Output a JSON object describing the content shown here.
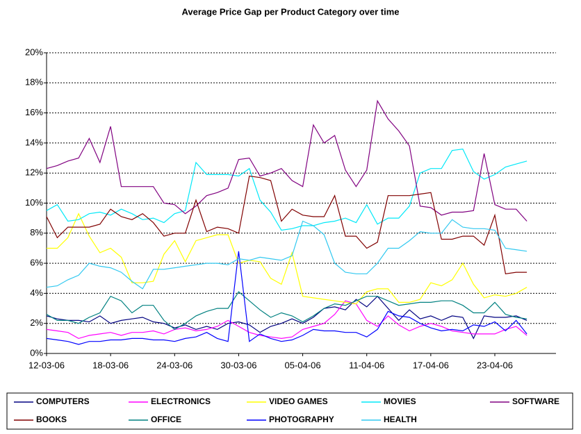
{
  "chart_data": {
    "type": "line",
    "title": "Average Price Gap per Product Category over time",
    "categories": [
      "12-03-06",
      null,
      null,
      null,
      null,
      null,
      "18-03-06",
      null,
      null,
      null,
      null,
      null,
      "24-03-06",
      null,
      null,
      null,
      null,
      null,
      "30-03-06",
      null,
      null,
      null,
      null,
      null,
      "05-04-06",
      null,
      null,
      null,
      null,
      null,
      "11-04-06",
      null,
      null,
      null,
      null,
      null,
      "17-04-06",
      null,
      null,
      null,
      null,
      null,
      "23-04-06",
      null,
      null,
      null
    ],
    "ylim": [
      0,
      20
    ],
    "yticks": [
      {
        "value": 0,
        "label": "0%"
      },
      {
        "value": 2,
        "label": "2%"
      },
      {
        "value": 4,
        "label": "4%"
      },
      {
        "value": 6,
        "label": "6%"
      },
      {
        "value": 8,
        "label": "8%"
      },
      {
        "value": 10,
        "label": "10%"
      },
      {
        "value": 12,
        "label": "12%"
      },
      {
        "value": 14,
        "label": "14%"
      },
      {
        "value": 16,
        "label": "16%"
      },
      {
        "value": 18,
        "label": "18%"
      },
      {
        "value": 20,
        "label": "20%"
      }
    ],
    "grid": true,
    "legend": "bottom",
    "series": [
      {
        "name": "COMPUTERS",
        "color": "#000080",
        "values": [
          2.5,
          2.3,
          2.2,
          2.2,
          2.1,
          2.5,
          2.0,
          2.2,
          2.3,
          2.4,
          2.1,
          2.0,
          1.7,
          1.9,
          1.6,
          1.8,
          1.6,
          2.0,
          2.1,
          1.9,
          1.4,
          1.8,
          2.0,
          2.3,
          2.0,
          2.4,
          3.0,
          3.1,
          2.9,
          3.6,
          3.1,
          3.8,
          3.0,
          2.2,
          2.9,
          2.3,
          2.5,
          2.2,
          2.5,
          2.4,
          1.0,
          2.5,
          2.4,
          2.4,
          2.5,
          2.2
        ]
      },
      {
        "name": "ELECTRONICS",
        "color": "#ff00ff",
        "values": [
          1.6,
          1.5,
          1.4,
          1.0,
          1.2,
          1.3,
          1.4,
          1.2,
          1.4,
          1.4,
          1.5,
          1.3,
          1.6,
          1.7,
          1.5,
          1.6,
          1.8,
          2.2,
          1.8,
          1.4,
          1.2,
          1.1,
          1.0,
          1.1,
          1.6,
          1.8,
          2.0,
          2.6,
          3.5,
          3.3,
          2.2,
          1.8,
          2.5,
          1.9,
          1.5,
          1.8,
          2.0,
          1.8,
          1.5,
          1.4,
          1.3,
          1.3,
          1.3,
          1.6,
          1.8,
          1.2
        ]
      },
      {
        "name": "VIDEO GAMES",
        "color": "#ffff00",
        "values": [
          7.0,
          7.0,
          7.7,
          9.3,
          7.8,
          6.7,
          7.0,
          6.4,
          4.7,
          4.7,
          4.8,
          6.6,
          7.5,
          6.1,
          7.5,
          7.7,
          7.9,
          7.9,
          6.0,
          6.2,
          6.1,
          5.0,
          4.6,
          6.7,
          3.8,
          3.7,
          3.6,
          3.5,
          3.4,
          3.3,
          4.1,
          4.3,
          4.3,
          3.4,
          3.4,
          3.6,
          4.7,
          4.5,
          4.9,
          6.0,
          4.6,
          3.7,
          3.9,
          3.8,
          4.0,
          4.4
        ]
      },
      {
        "name": "MOVIES",
        "color": "#00e8f8",
        "values": [
          9.5,
          9.9,
          8.8,
          8.9,
          9.3,
          9.4,
          9.2,
          9.6,
          9.3,
          8.9,
          9.0,
          8.7,
          9.3,
          9.5,
          12.7,
          11.9,
          11.9,
          11.9,
          11.8,
          12.3,
          10.2,
          9.4,
          8.2,
          8.3,
          8.5,
          8.5,
          8.7,
          8.8,
          9.0,
          8.7,
          9.9,
          8.6,
          9.0,
          9.0,
          9.8,
          12.0,
          12.3,
          12.3,
          13.5,
          13.6,
          12.1,
          11.6,
          11.9,
          12.4,
          12.6,
          12.8
        ]
      },
      {
        "name": "SOFTWARE",
        "color": "#800080",
        "values": [
          12.3,
          12.5,
          12.8,
          13.0,
          14.3,
          12.7,
          15.1,
          11.1,
          11.1,
          11.1,
          11.1,
          10.0,
          9.9,
          9.3,
          9.8,
          10.5,
          10.7,
          11.0,
          12.9,
          13.0,
          11.8,
          12.0,
          12.3,
          11.5,
          11.1,
          15.2,
          14.0,
          14.5,
          12.2,
          11.1,
          12.2,
          16.8,
          15.6,
          14.8,
          13.8,
          9.8,
          9.7,
          9.2,
          9.4,
          9.4,
          9.5,
          13.3,
          9.9,
          9.6,
          9.6,
          8.8
        ]
      },
      {
        "name": "BOOKS",
        "color": "#800000",
        "values": [
          9.1,
          7.7,
          8.4,
          8.4,
          8.4,
          8.6,
          9.6,
          9.1,
          8.9,
          9.3,
          8.7,
          7.8,
          8.0,
          8.0,
          10.2,
          8.1,
          8.4,
          8.3,
          8.0,
          11.8,
          11.7,
          11.5,
          8.8,
          9.6,
          9.2,
          9.1,
          9.1,
          10.5,
          7.8,
          7.8,
          7.0,
          7.4,
          10.5,
          10.5,
          10.5,
          10.6,
          10.7,
          7.6,
          7.6,
          7.8,
          7.8,
          7.2,
          9.2,
          5.3,
          5.4,
          5.4
        ]
      },
      {
        "name": "OFFICE",
        "color": "#008080",
        "values": [
          2.6,
          2.2,
          2.2,
          2.0,
          2.4,
          2.7,
          3.8,
          3.5,
          2.7,
          3.2,
          3.2,
          2.2,
          1.6,
          2.0,
          2.5,
          2.8,
          3.0,
          3.0,
          4.1,
          3.5,
          2.9,
          2.4,
          2.7,
          2.5,
          2.1,
          2.5,
          3.0,
          3.3,
          3.2,
          3.5,
          3.8,
          3.8,
          3.5,
          3.2,
          3.3,
          3.4,
          3.4,
          3.5,
          3.5,
          3.2,
          2.7,
          2.7,
          3.4,
          2.6,
          2.4,
          2.3
        ]
      },
      {
        "name": "PHOTOGRAPHY",
        "color": "#0000ff",
        "values": [
          1.0,
          0.9,
          0.8,
          0.6,
          0.8,
          0.8,
          0.9,
          0.9,
          1.0,
          1.0,
          0.9,
          0.9,
          0.8,
          1.0,
          1.1,
          1.4,
          1.0,
          0.8,
          6.8,
          0.8,
          1.3,
          1.0,
          0.8,
          0.9,
          1.2,
          1.6,
          1.5,
          1.5,
          1.4,
          1.4,
          1.1,
          1.6,
          2.8,
          2.5,
          2.4,
          2.0,
          1.7,
          1.5,
          1.6,
          1.5,
          1.9,
          1.8,
          2.1,
          1.5,
          2.2,
          1.3
        ]
      },
      {
        "name": "HEALTH",
        "color": "#30c8f0",
        "values": [
          4.4,
          4.5,
          4.9,
          5.2,
          6.0,
          5.8,
          5.7,
          5.4,
          4.8,
          4.3,
          5.6,
          5.6,
          5.7,
          5.8,
          5.9,
          6.0,
          6.0,
          5.9,
          6.3,
          6.2,
          6.4,
          6.3,
          6.2,
          6.5,
          8.8,
          8.5,
          7.9,
          6.0,
          5.4,
          5.3,
          5.3,
          6.0,
          7.0,
          7.0,
          7.5,
          8.1,
          8.0,
          8.0,
          8.9,
          8.4,
          8.3,
          8.3,
          8.2,
          7.0,
          6.9,
          6.8
        ]
      }
    ]
  }
}
